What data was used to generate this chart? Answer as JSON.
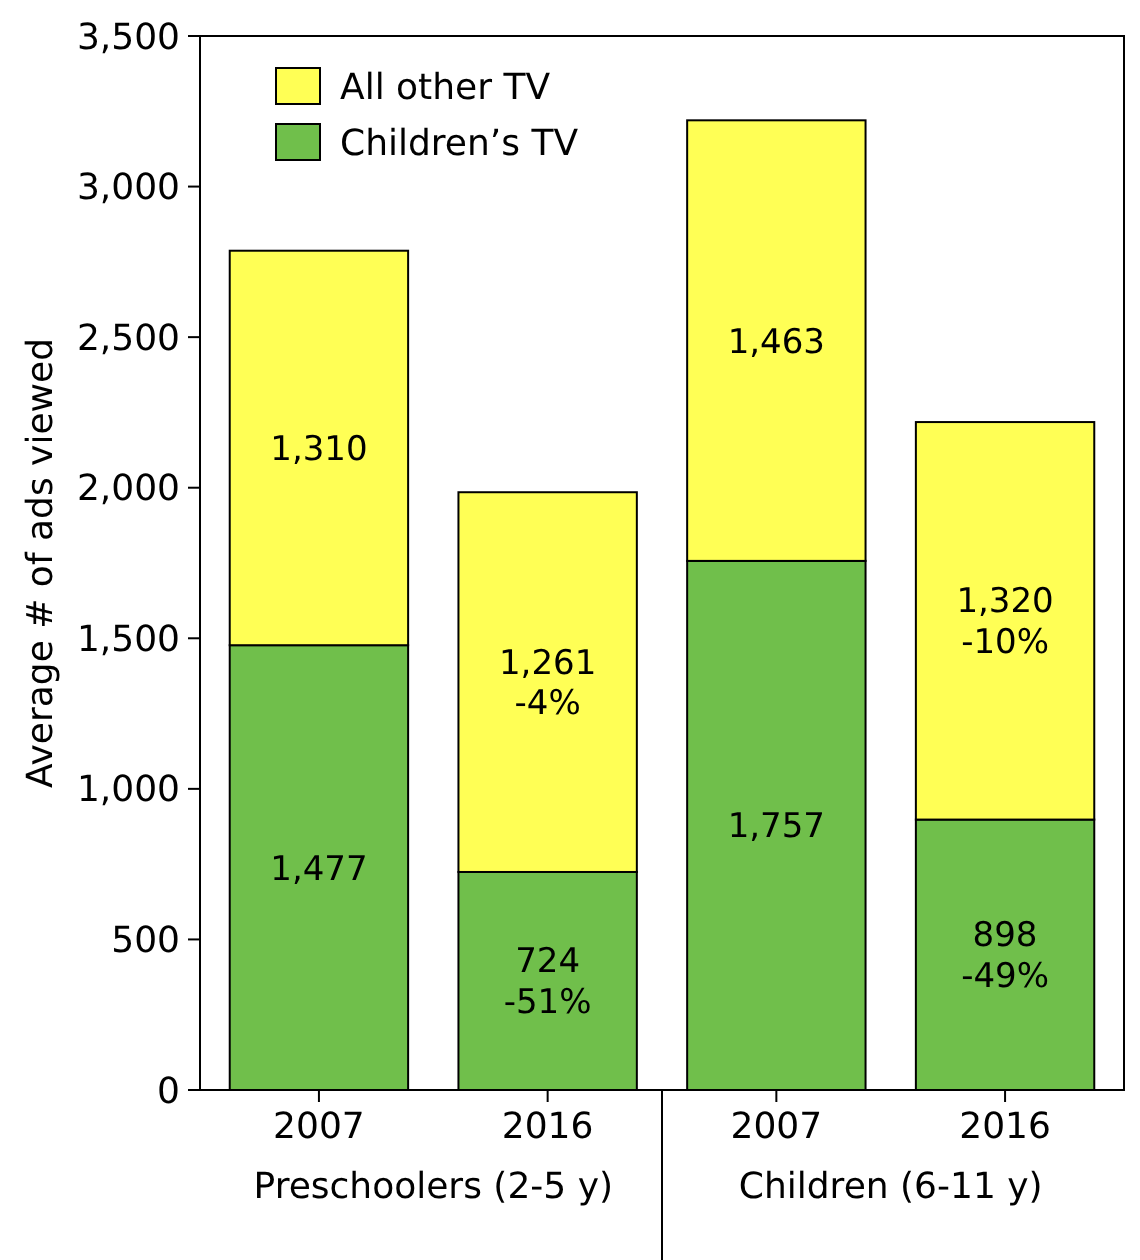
{
  "chart_data": {
    "type": "bar",
    "stacked": true,
    "ylabel": "Average # of ads viewed",
    "categories": [
      "2007",
      "2016",
      "2007",
      "2016"
    ],
    "series": [
      {
        "name": "Children’s TV",
        "color": "#70bf4b",
        "values": [
          1477,
          724,
          1757,
          898
        ],
        "value_labels": [
          "1,477",
          "724\n-51%",
          "1,757",
          "898\n-49%"
        ]
      },
      {
        "name": "All other TV",
        "color": "#ffff55",
        "values": [
          1310,
          1261,
          1463,
          1320
        ],
        "value_labels": [
          "1,310",
          "1,261\n-4%",
          "1,463",
          "1,320\n-10%"
        ]
      }
    ],
    "ylim": [
      0,
      3500
    ],
    "yticks": [
      {
        "value": 0,
        "label": "0"
      },
      {
        "value": 500,
        "label": "500"
      },
      {
        "value": 1000,
        "label": "1,000"
      },
      {
        "value": 1500,
        "label": "1,500"
      },
      {
        "value": 2000,
        "label": "2,000"
      },
      {
        "value": 2500,
        "label": "2,500"
      },
      {
        "value": 3000,
        "label": "3,000"
      },
      {
        "value": 3500,
        "label": "3,500"
      }
    ],
    "legend": "top left",
    "grid": false,
    "annotations": [
      "Preschoolers (2-5 y)",
      "Children (6-11 y)"
    ]
  }
}
